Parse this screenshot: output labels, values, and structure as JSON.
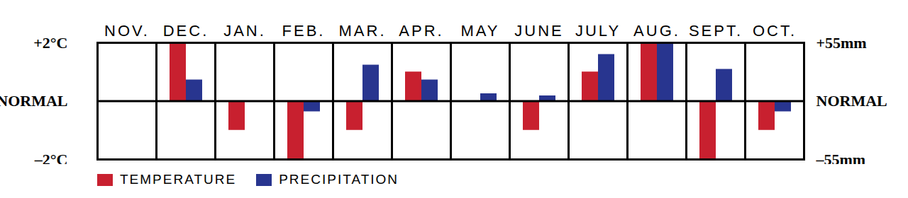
{
  "chart_data": {
    "type": "bar",
    "categories": [
      "NOV.",
      "DEC.",
      "JAN.",
      "FEB.",
      "MAR.",
      "APR.",
      "MAY",
      "JUNE",
      "JULY",
      "AUG.",
      "SEPT.",
      "OCT."
    ],
    "series": [
      {
        "name": "TEMPERATURE",
        "color": "#c8202f",
        "values": [
          0,
          2,
          -1,
          -2,
          -1,
          1,
          0,
          -1,
          1,
          2,
          -2,
          -1
        ]
      },
      {
        "name": "PRECIPITATION",
        "color": "#28358f",
        "axis": "y2",
        "values": [
          0,
          20,
          0,
          -10,
          34,
          20,
          7,
          5,
          44,
          55,
          30,
          -10
        ]
      }
    ],
    "ylim": [
      -2,
      2
    ],
    "yticks": [
      {
        "value": 2,
        "label": "+2°C"
      },
      {
        "value": 0,
        "label": "NORMAL"
      },
      {
        "value": -2,
        "label": "–2°C"
      }
    ],
    "y2lim": [
      -55,
      55
    ],
    "y2ticks": [
      {
        "value": 55,
        "label": "+55mm"
      },
      {
        "value": 0,
        "label": "NORMAL"
      },
      {
        "value": -55,
        "label": "–55mm"
      }
    ],
    "legend": "bottom-left"
  }
}
